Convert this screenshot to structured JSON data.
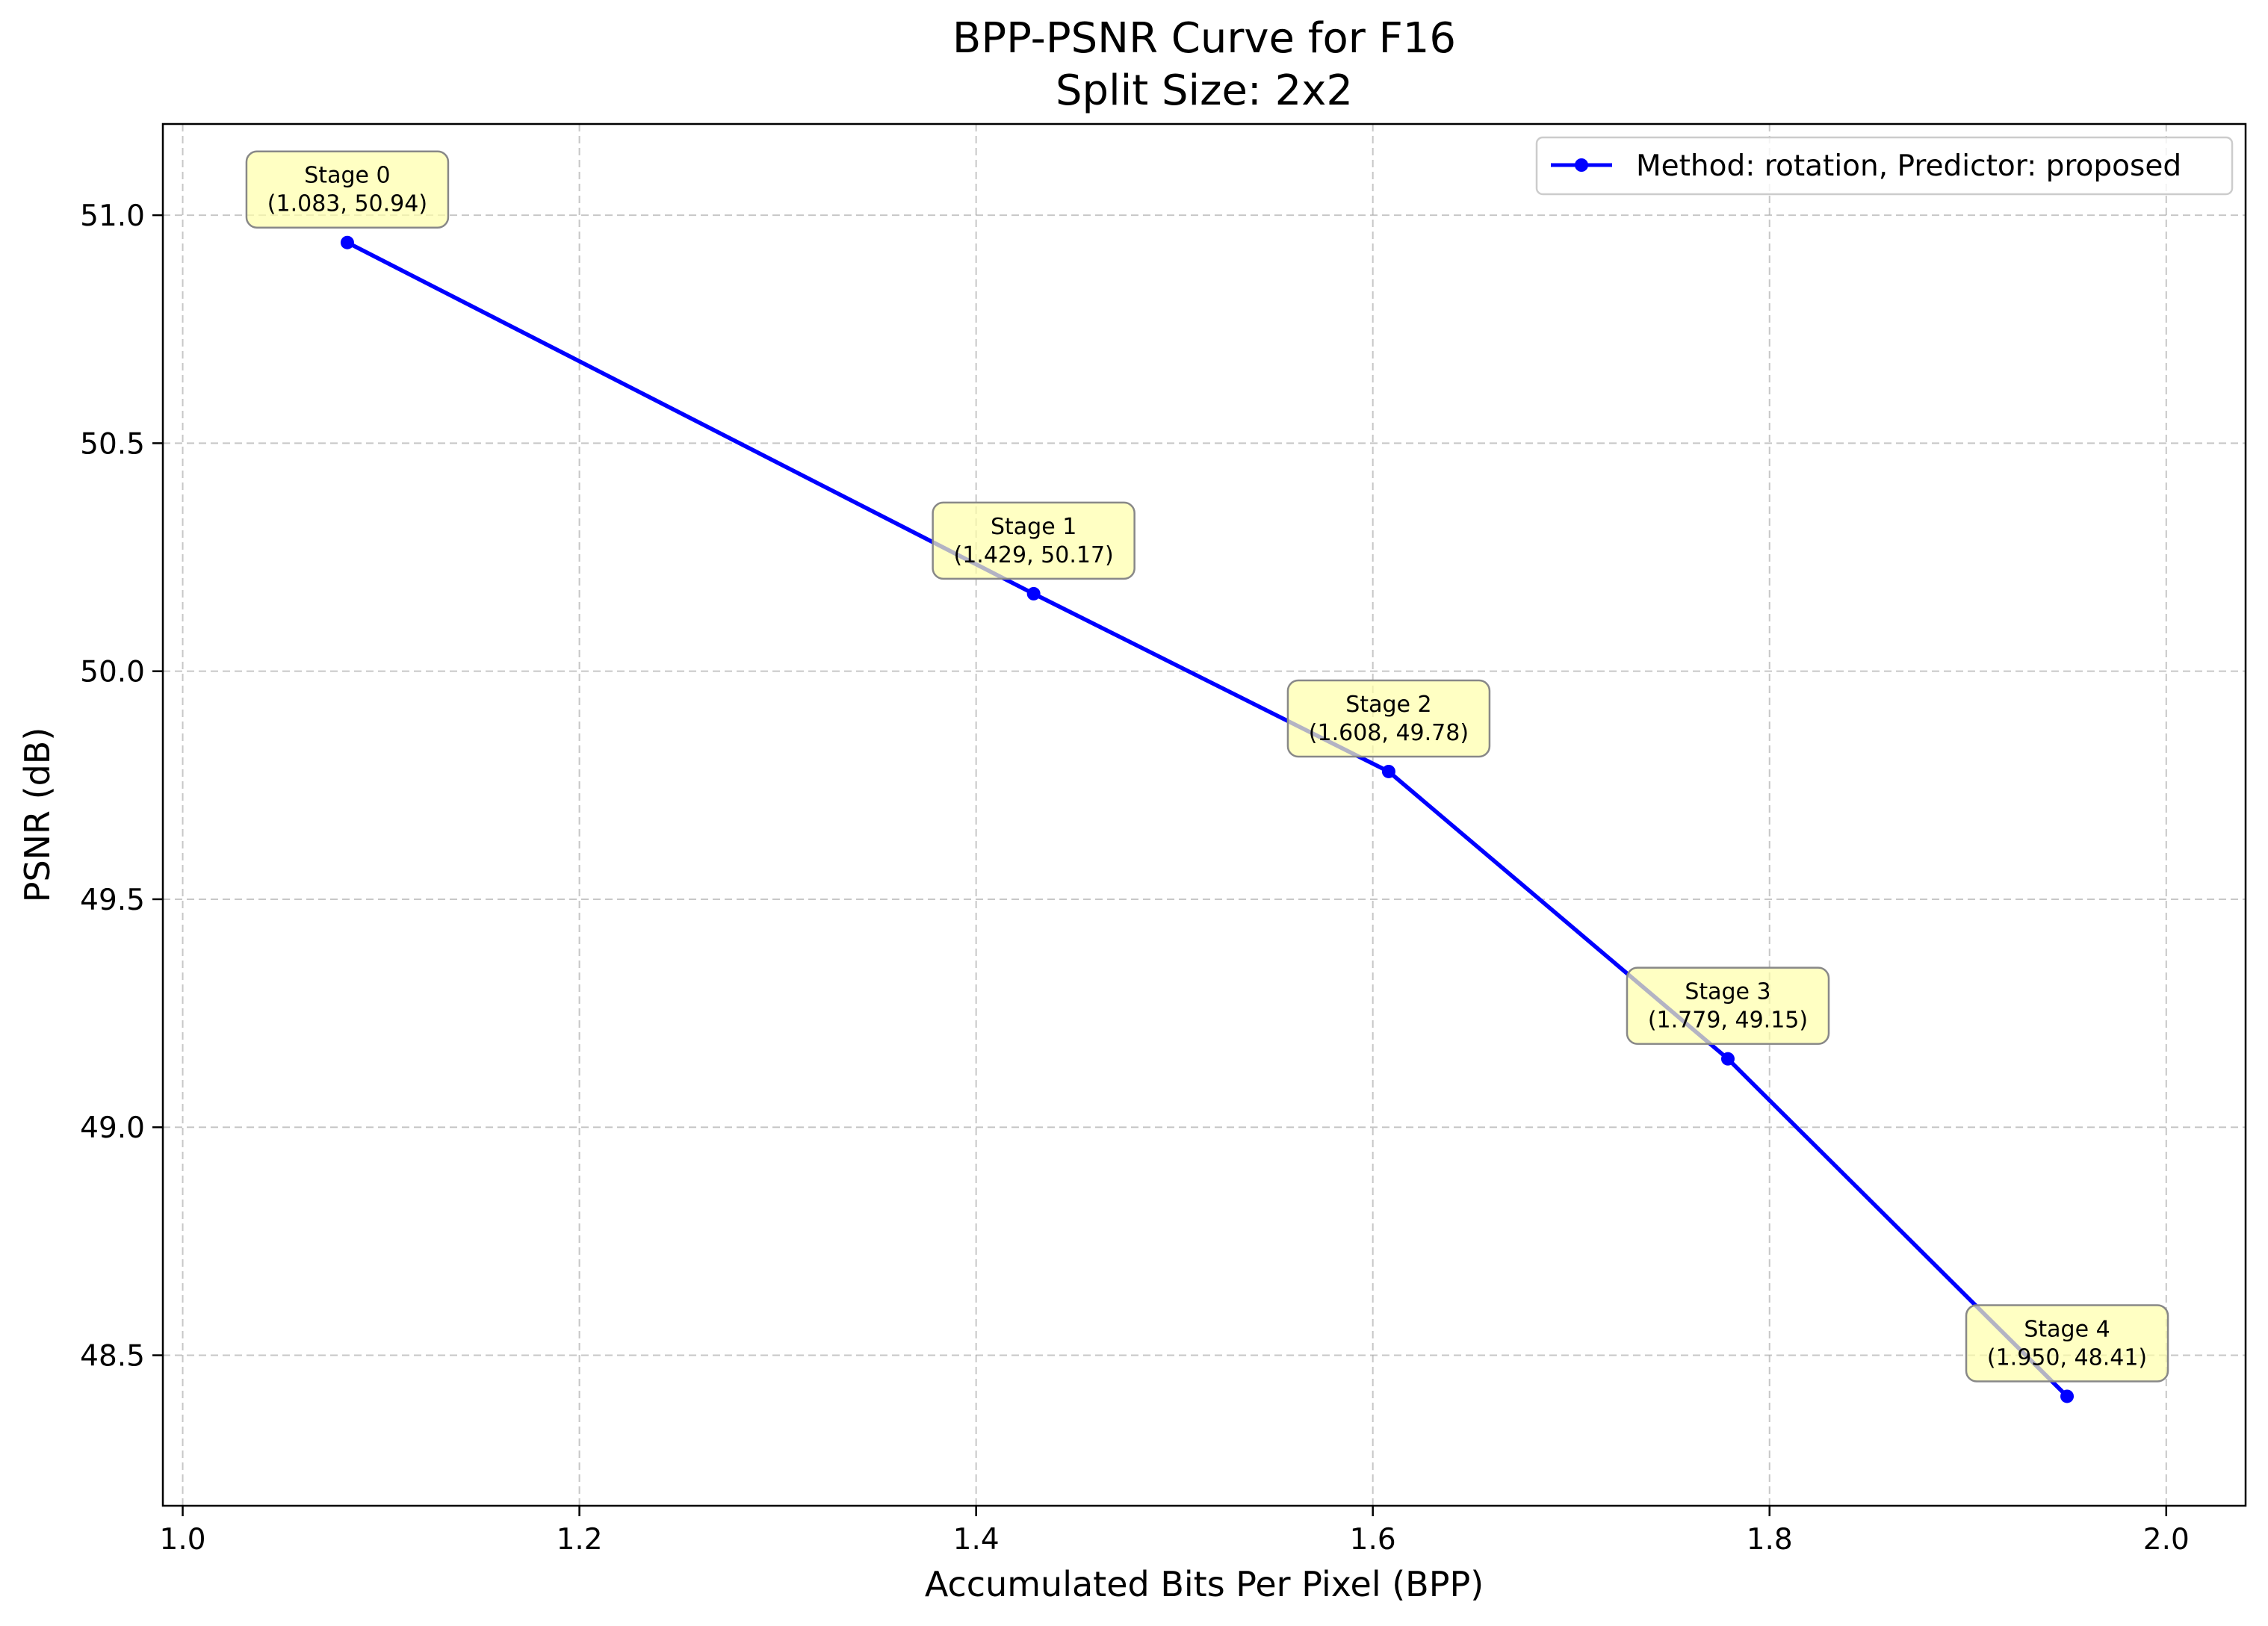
{
  "chart_data": {
    "type": "line",
    "title": "BPP-PSNR Curve for F16",
    "subtitle": "Split Size: 2x2",
    "xlabel": "Accumulated Bits Per Pixel (BPP)",
    "ylabel": "PSNR (dB)",
    "xlim": [
      0.99,
      2.04
    ],
    "ylim": [
      48.17,
      51.2
    ],
    "xticks": [
      1.0,
      1.2,
      1.4,
      1.6,
      1.8,
      2.0
    ],
    "xtick_labels": [
      "1.0",
      "1.2",
      "1.4",
      "1.6",
      "1.8",
      "2.0"
    ],
    "yticks": [
      48.5,
      49.0,
      49.5,
      50.0,
      50.5,
      51.0
    ],
    "ytick_labels": [
      "48.5",
      "49.0",
      "49.5",
      "50.0",
      "50.5",
      "51.0"
    ],
    "grid": true,
    "legend_position": "top-right",
    "series": [
      {
        "name": "Method: rotation, Predictor: proposed",
        "color": "#0000ff",
        "x": [
          1.083,
          1.429,
          1.608,
          1.779,
          1.95
        ],
        "y": [
          50.94,
          50.17,
          49.78,
          49.15,
          48.41
        ]
      }
    ],
    "annotations": [
      {
        "stage": "Stage 0",
        "coords": "(1.083, 50.94)"
      },
      {
        "stage": "Stage 1",
        "coords": "(1.429, 50.17)"
      },
      {
        "stage": "Stage 2",
        "coords": "(1.608, 49.78)"
      },
      {
        "stage": "Stage 3",
        "coords": "(1.779, 49.15)"
      },
      {
        "stage": "Stage 4",
        "coords": "(1.950, 48.41)"
      }
    ],
    "annotation_color": "#ffffaa"
  }
}
